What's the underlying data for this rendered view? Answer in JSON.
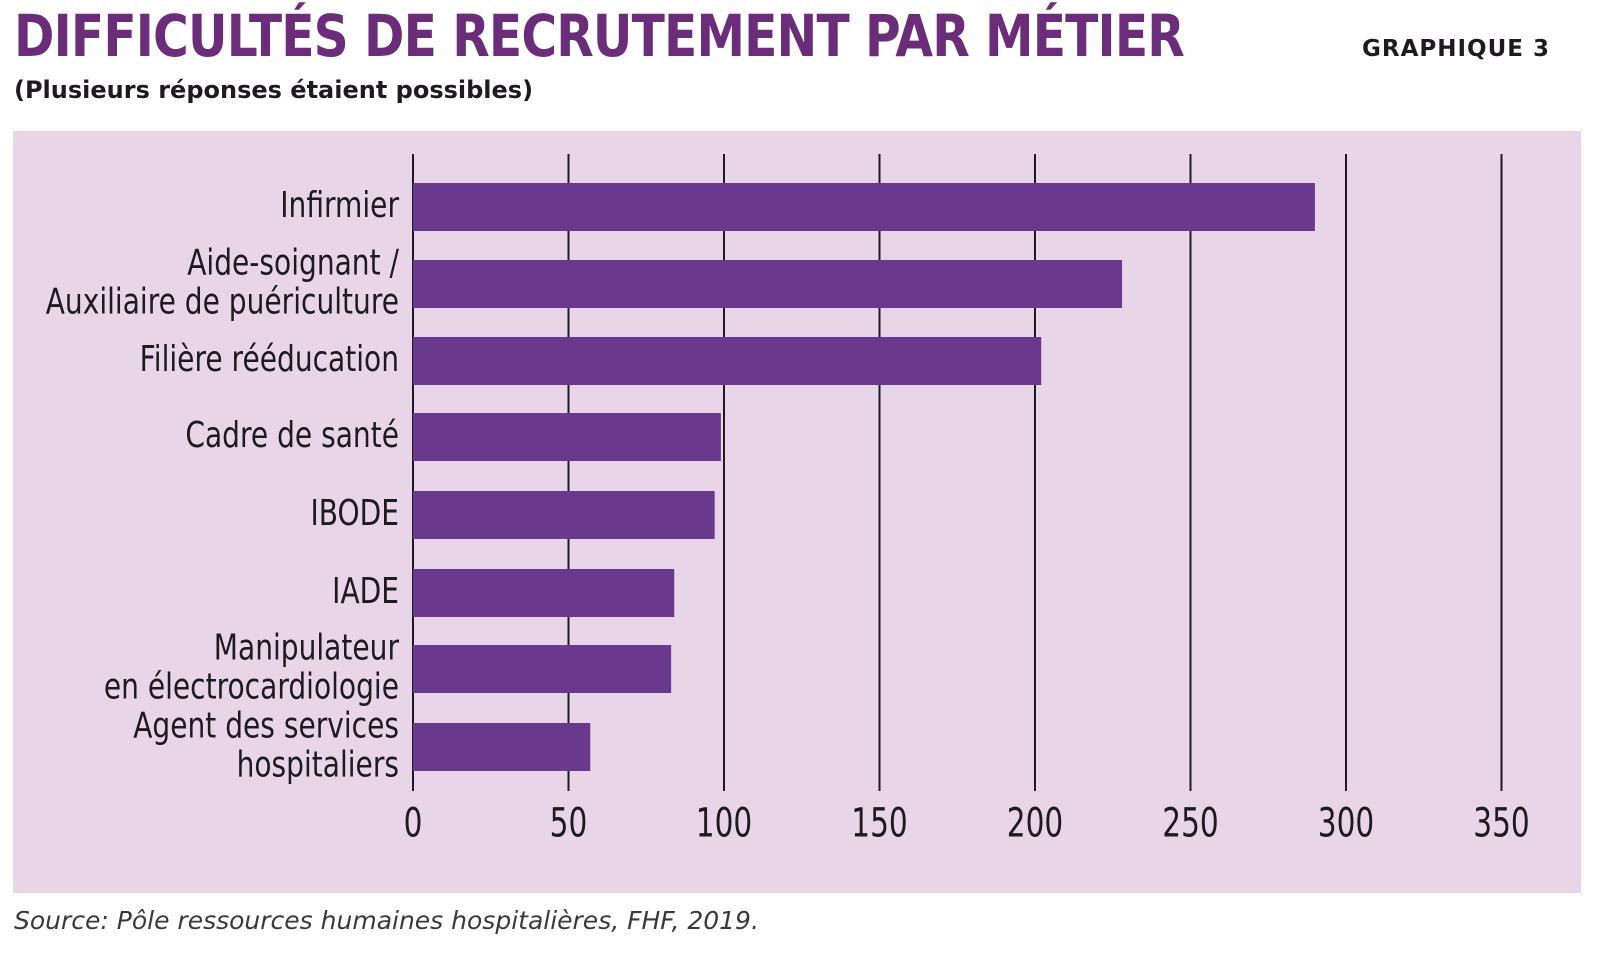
{
  "header": {
    "title": "DIFFICULTÉS DE RECRUTEMENT PAR MÉTIER",
    "figure_number": "GRAPHIQUE 3",
    "subtitle": "(Plusieurs réponses étaient possibles)"
  },
  "footer": {
    "source": "Source: Pôle ressources humaines hospitalières, FHF, 2019."
  },
  "colors": {
    "title": "#6b2d79",
    "bar": "#68398c",
    "panel": "#e8d6e8",
    "text": "#1f1a1f"
  },
  "chart_data": {
    "type": "bar",
    "orientation": "horizontal",
    "categories": [
      [
        "Infirmier"
      ],
      [
        "Aide-soignant /",
        "Auxiliaire de puériculture"
      ],
      [
        "Filière rééducation"
      ],
      [
        "Cadre de santé"
      ],
      [
        "IBODE"
      ],
      [
        "IADE"
      ],
      [
        "Manipulateur",
        "en électrocardiologie"
      ],
      [
        "Agent des services",
        "hospitaliers"
      ]
    ],
    "values": [
      290,
      228,
      202,
      99,
      97,
      84,
      83,
      57
    ],
    "xlim": [
      0,
      350
    ],
    "xticks": [
      0,
      50,
      100,
      150,
      200,
      250,
      300,
      350
    ],
    "grid": true,
    "legend": "none"
  }
}
